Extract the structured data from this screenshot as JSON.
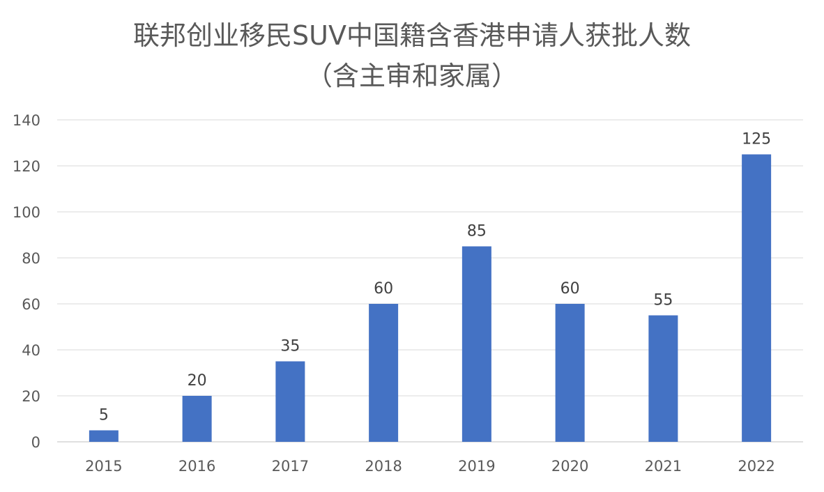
{
  "chart_data": {
    "type": "bar",
    "title": [
      "联邦创业移民SUV中国籍含香港申请人获批人数",
      "（含主审和家属）"
    ],
    "xlabel": "",
    "ylabel": "",
    "categories": [
      "2015",
      "2016",
      "2017",
      "2018",
      "2019",
      "2020",
      "2021",
      "2022"
    ],
    "values": [
      5,
      20,
      35,
      60,
      85,
      60,
      55,
      125
    ],
    "ylim": [
      0,
      140
    ],
    "yticks": [
      0,
      20,
      40,
      60,
      80,
      100,
      120,
      140
    ],
    "grid": true,
    "data_labels": true,
    "bar_color": "#4472C4"
  }
}
